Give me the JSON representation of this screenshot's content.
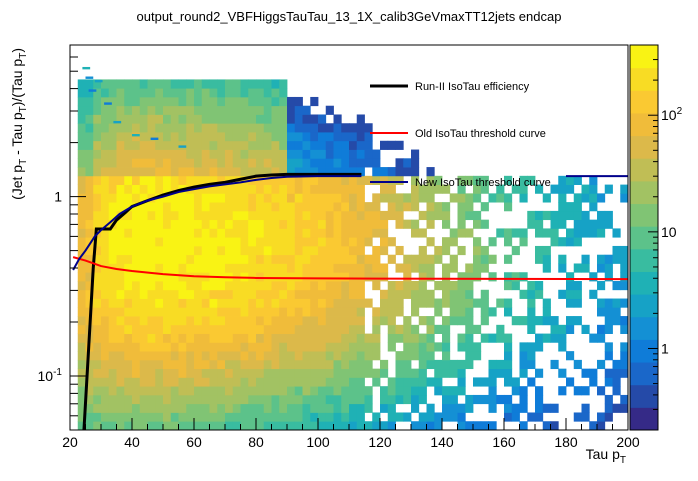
{
  "chart_data": {
    "type": "heatmap",
    "title": "output_round2_VBFHiggsTauTau_13_1X_calib3GeVmaxTT12jets endcap",
    "xlabel": {
      "main": "Tau p",
      "sub": "T"
    },
    "ylabel": {
      "parts": [
        "(Jet p",
        "T",
        " - Tau p",
        "T",
        ")/(Tau p",
        "T",
        ")"
      ]
    },
    "x_range": [
      20,
      200
    ],
    "y_range": [
      0.05,
      7
    ],
    "y_scale": "log",
    "x_ticks": [
      {
        "value": 20,
        "label": "20"
      },
      {
        "value": 40,
        "label": "40"
      },
      {
        "value": 60,
        "label": "60"
      },
      {
        "value": 80,
        "label": "80"
      },
      {
        "value": 100,
        "label": "100"
      },
      {
        "value": 120,
        "label": "120"
      },
      {
        "value": 140,
        "label": "140"
      },
      {
        "value": 160,
        "label": "160"
      },
      {
        "value": 180,
        "label": "180"
      },
      {
        "value": 200,
        "label": "200"
      }
    ],
    "y_ticks": [
      {
        "value": 0.1,
        "base": "10",
        "exp": "-1"
      },
      {
        "value": 1,
        "base": "1",
        "exp": ""
      }
    ],
    "z_scale": "log",
    "z_range": [
      0.2,
      400
    ],
    "z_ticks": [
      {
        "value": 1,
        "base": "1",
        "exp": ""
      },
      {
        "value": 10,
        "base": "10",
        "exp": ""
      },
      {
        "value": 100,
        "base": "10",
        "exp": "2"
      }
    ],
    "grid": false,
    "legend_placement": "top-right",
    "colors": {
      "palette": [
        "#352a87",
        "#254aa8",
        "#1a67c9",
        "#0f7cd8",
        "#1490d4",
        "#16a2c6",
        "#1fb1b5",
        "#39bca0",
        "#5cc28a",
        "#80c474",
        "#a2c263",
        "#c0be55",
        "#dcb94a",
        "#f0bc3a",
        "#fac932",
        "#f8dc24",
        "#f9f314"
      ],
      "empty": "#ffffff"
    },
    "series": [
      {
        "name": "Run-II IsoTau efficiency",
        "color": "#000000",
        "points": [
          [
            24.5,
            0.05
          ],
          [
            25.5,
            0.1
          ],
          [
            26.5,
            0.2
          ],
          [
            27.5,
            0.4
          ],
          [
            28.5,
            0.66
          ],
          [
            30,
            0.66
          ],
          [
            33,
            0.66
          ],
          [
            35,
            0.74
          ],
          [
            38,
            0.82
          ],
          [
            40,
            0.88
          ],
          [
            45,
            0.95
          ],
          [
            50,
            1.02
          ],
          [
            55,
            1.08
          ],
          [
            60,
            1.13
          ],
          [
            65,
            1.17
          ],
          [
            70,
            1.2
          ],
          [
            75,
            1.25
          ],
          [
            80,
            1.3
          ],
          [
            85,
            1.32
          ],
          [
            90,
            1.33
          ],
          [
            100,
            1.33
          ],
          [
            114,
            1.33
          ]
        ]
      },
      {
        "name": "Old IsoTau threshold curve",
        "color": "#ff0000",
        "points": [
          [
            21,
            0.46
          ],
          [
            25,
            0.44
          ],
          [
            30,
            0.41
          ],
          [
            35,
            0.395
          ],
          [
            40,
            0.385
          ],
          [
            50,
            0.37
          ],
          [
            60,
            0.36
          ],
          [
            70,
            0.355
          ],
          [
            80,
            0.352
          ],
          [
            100,
            0.35
          ],
          [
            120,
            0.349
          ],
          [
            160,
            0.348
          ],
          [
            200,
            0.347
          ]
        ]
      },
      {
        "name": "New IsoTau threshold curve",
        "color": "#00008b",
        "points": [
          [
            21,
            0.39
          ],
          [
            23,
            0.45
          ],
          [
            25,
            0.5
          ],
          [
            28,
            0.6
          ],
          [
            30,
            0.65
          ],
          [
            33,
            0.72
          ],
          [
            36,
            0.8
          ],
          [
            40,
            0.88
          ],
          [
            45,
            0.95
          ],
          [
            50,
            1.0
          ],
          [
            55,
            1.06
          ],
          [
            60,
            1.1
          ],
          [
            65,
            1.14
          ],
          [
            70,
            1.17
          ],
          [
            75,
            1.2
          ],
          [
            80,
            1.24
          ],
          [
            85,
            1.27
          ],
          [
            90,
            1.29
          ],
          [
            100,
            1.3
          ],
          [
            114,
            1.3
          ]
        ]
      },
      {
        "name": "",
        "color": "#00008b",
        "points": [
          [
            180,
            1.3
          ],
          [
            200,
            1.3
          ]
        ]
      }
    ]
  }
}
